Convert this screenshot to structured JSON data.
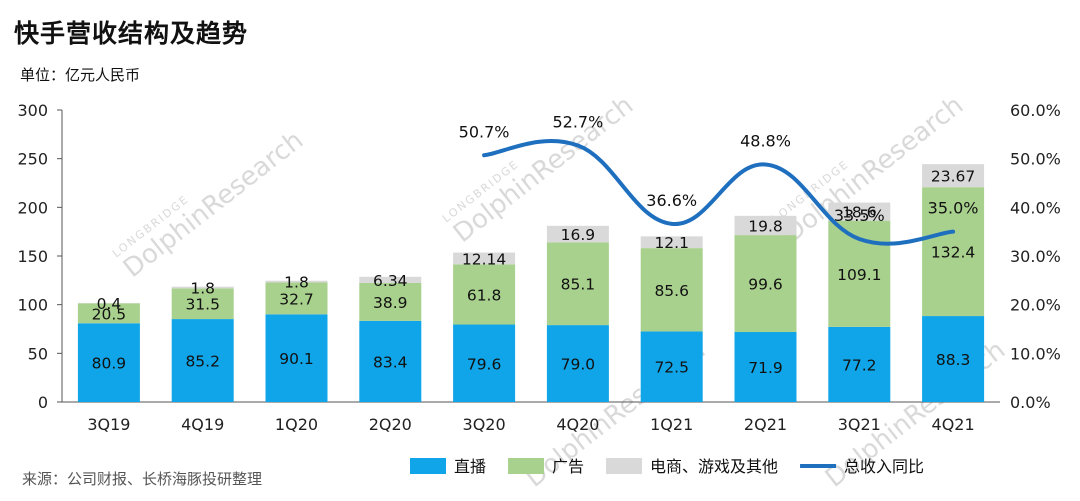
{
  "title": "快手营收结构及趋势",
  "unit": "单位：亿元人民币",
  "source": "来源：公司财报、长桥海豚投研整理",
  "watermark": "DolphinResearch",
  "watermark_sub": "LONGBRIDGE",
  "colors": {
    "live": "#10a5e8",
    "ads": "#a9d18e",
    "other": "#d9d9d9",
    "line": "#1f6fbf"
  },
  "chart_data": {
    "type": "bar",
    "stacked": true,
    "categories": [
      "3Q19",
      "4Q19",
      "1Q20",
      "2Q20",
      "3Q20",
      "4Q20",
      "1Q21",
      "2Q21",
      "3Q21",
      "4Q21"
    ],
    "series": [
      {
        "name": "直播",
        "values": [
          80.9,
          85.2,
          90.1,
          83.4,
          79.6,
          79.0,
          72.5,
          71.9,
          77.2,
          88.3
        ],
        "labels": [
          "80.9",
          "85.2",
          "90.1",
          "83.4",
          "79.6",
          "79.0",
          "72.5",
          "71.9",
          "77.2",
          "88.3"
        ]
      },
      {
        "name": "广告",
        "values": [
          20.5,
          31.5,
          32.7,
          38.9,
          61.8,
          85.1,
          85.6,
          99.6,
          109.1,
          132.4
        ],
        "labels": [
          "20.5",
          "31.5",
          "32.7",
          "38.9",
          "61.8",
          "85.1",
          "85.6",
          "99.6",
          "109.1",
          "132.4"
        ]
      },
      {
        "name": "电商、游戏及其他",
        "values": [
          0.4,
          1.8,
          1.8,
          6.34,
          12.14,
          16.9,
          12.1,
          19.8,
          18.6,
          23.67
        ],
        "labels": [
          "0.4",
          "1.8",
          "1.8",
          "6.34",
          "12.14",
          "16.9",
          "12.1",
          "19.8",
          "18.6",
          "23.67"
        ]
      }
    ],
    "line": {
      "name": "总收入同比",
      "axis": "right",
      "categories": [
        "3Q20",
        "4Q20",
        "1Q21",
        "2Q21",
        "3Q21",
        "4Q21"
      ],
      "values": [
        50.7,
        52.7,
        36.6,
        48.8,
        33.5,
        35.0
      ],
      "labels": [
        "50.7%",
        "52.7%",
        "36.6%",
        "48.8%",
        "33.5%",
        "35.0%"
      ]
    },
    "y_left": {
      "min": 0,
      "max": 300,
      "ticks": [
        "0",
        "50",
        "100",
        "150",
        "200",
        "250",
        "300"
      ]
    },
    "y_right": {
      "min": 0,
      "max": 60,
      "ticks": [
        "0.0%",
        "10.0%",
        "20.0%",
        "30.0%",
        "40.0%",
        "50.0%",
        "60.0%"
      ]
    },
    "grid": false,
    "legend": "bottom"
  }
}
